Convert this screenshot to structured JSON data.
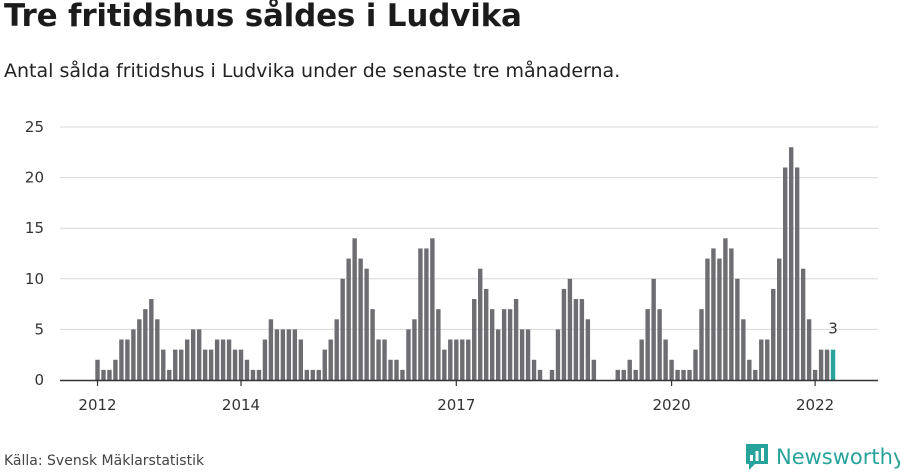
{
  "title": "Tre fritidshus såldes i Ludvika",
  "subtitle": "Antal sålda fritidshus i Ludvika under de senaste tre månaderna.",
  "source": "Källa: Svensk Mäklarstatistik",
  "brand": "Newsworthy",
  "colors": {
    "bar": "#6d6d72",
    "highlight": "#27a39b",
    "grid": "#d8d8d8",
    "axis": "#333333",
    "brand": "#27a39b"
  },
  "chart_data": {
    "type": "bar",
    "title": "Tre fritidshus såldes i Ludvika",
    "xlabel": "",
    "ylabel": "",
    "ylim": [
      0,
      25
    ],
    "yticks": [
      "0",
      "5",
      "10",
      "15",
      "20",
      "25"
    ],
    "xticks": [
      {
        "label": "2012",
        "index": 0
      },
      {
        "label": "2014",
        "index": 24
      },
      {
        "label": "2017",
        "index": 60
      },
      {
        "label": "2020",
        "index": 96
      },
      {
        "label": "2022",
        "index": 120
      }
    ],
    "values": [
      2,
      1,
      1,
      2,
      4,
      4,
      5,
      6,
      7,
      8,
      6,
      3,
      1,
      3,
      3,
      4,
      5,
      5,
      3,
      3,
      4,
      4,
      4,
      3,
      3,
      2,
      1,
      1,
      4,
      6,
      5,
      5,
      5,
      5,
      4,
      1,
      1,
      1,
      3,
      4,
      6,
      10,
      12,
      14,
      12,
      11,
      7,
      4,
      4,
      2,
      2,
      1,
      5,
      6,
      13,
      13,
      14,
      7,
      3,
      4,
      4,
      4,
      4,
      8,
      11,
      9,
      7,
      5,
      7,
      7,
      8,
      5,
      5,
      2,
      1,
      0,
      1,
      5,
      9,
      10,
      8,
      8,
      6,
      2,
      0,
      0,
      0,
      1,
      1,
      2,
      1,
      4,
      7,
      10,
      7,
      4,
      2,
      1,
      1,
      1,
      3,
      7,
      12,
      13,
      12,
      14,
      13,
      10,
      6,
      2,
      1,
      4,
      4,
      9,
      12,
      21,
      23,
      21,
      11,
      6,
      1,
      3,
      3,
      3
    ],
    "last_value_label": "3"
  }
}
